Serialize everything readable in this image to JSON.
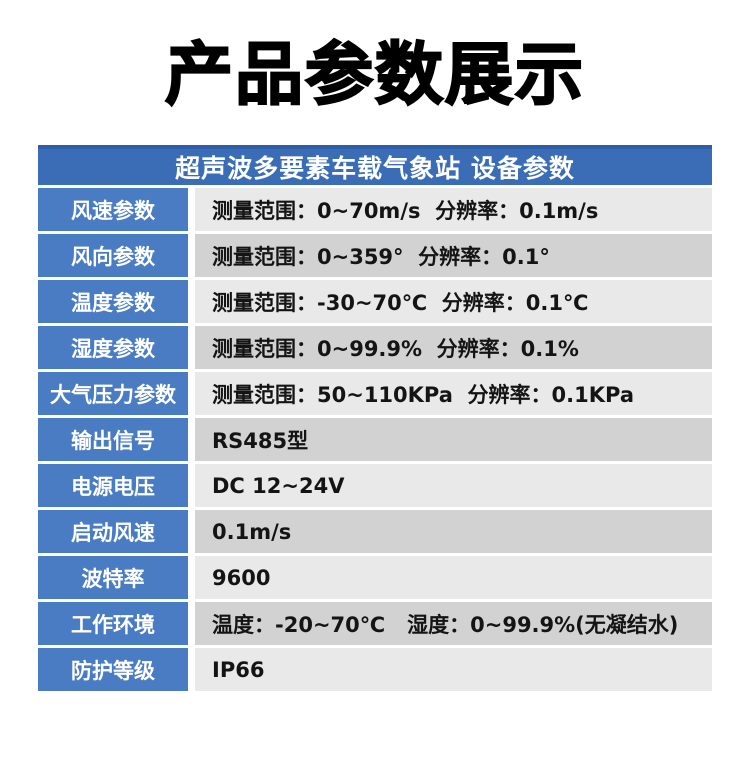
{
  "title": "产品参数展示",
  "table": {
    "header": "超声波多要素车载气象站 设备参数",
    "colors": {
      "header_bg": "#3b6db6",
      "header_top_border": "#2e5ea7",
      "label_bg": "#4a7cc4",
      "row_light": "#e9e9e9",
      "row_dark": "#d2d2d2",
      "header_text": "#ffffff",
      "label_text": "#ffffff",
      "value_text": "#141414",
      "page_bg": "#ffffff",
      "title_text": "#000000"
    },
    "rows": [
      {
        "label": "风速参数",
        "value": "测量范围：0~70m/s  分辨率：0.1m/s"
      },
      {
        "label": "风向参数",
        "value": "测量范围：0~359°  分辨率：0.1°"
      },
      {
        "label": "温度参数",
        "value": "测量范围：-30~70℃  分辨率：0.1℃"
      },
      {
        "label": "湿度参数",
        "value": "测量范围：0~99.9%  分辨率：0.1%"
      },
      {
        "label": "大气压力参数",
        "value": "测量范围：50~110KPa  分辨率：0.1KPa"
      },
      {
        "label": "输出信号",
        "value": "RS485型"
      },
      {
        "label": "电源电压",
        "value": "DC 12~24V"
      },
      {
        "label": "启动风速",
        "value": "0.1m/s"
      },
      {
        "label": "波特率",
        "value": "9600"
      },
      {
        "label": "工作环境",
        "value": "温度：-20~70℃   湿度：0~99.9%(无凝结水)"
      },
      {
        "label": "防护等级",
        "value": "IP66"
      }
    ]
  }
}
